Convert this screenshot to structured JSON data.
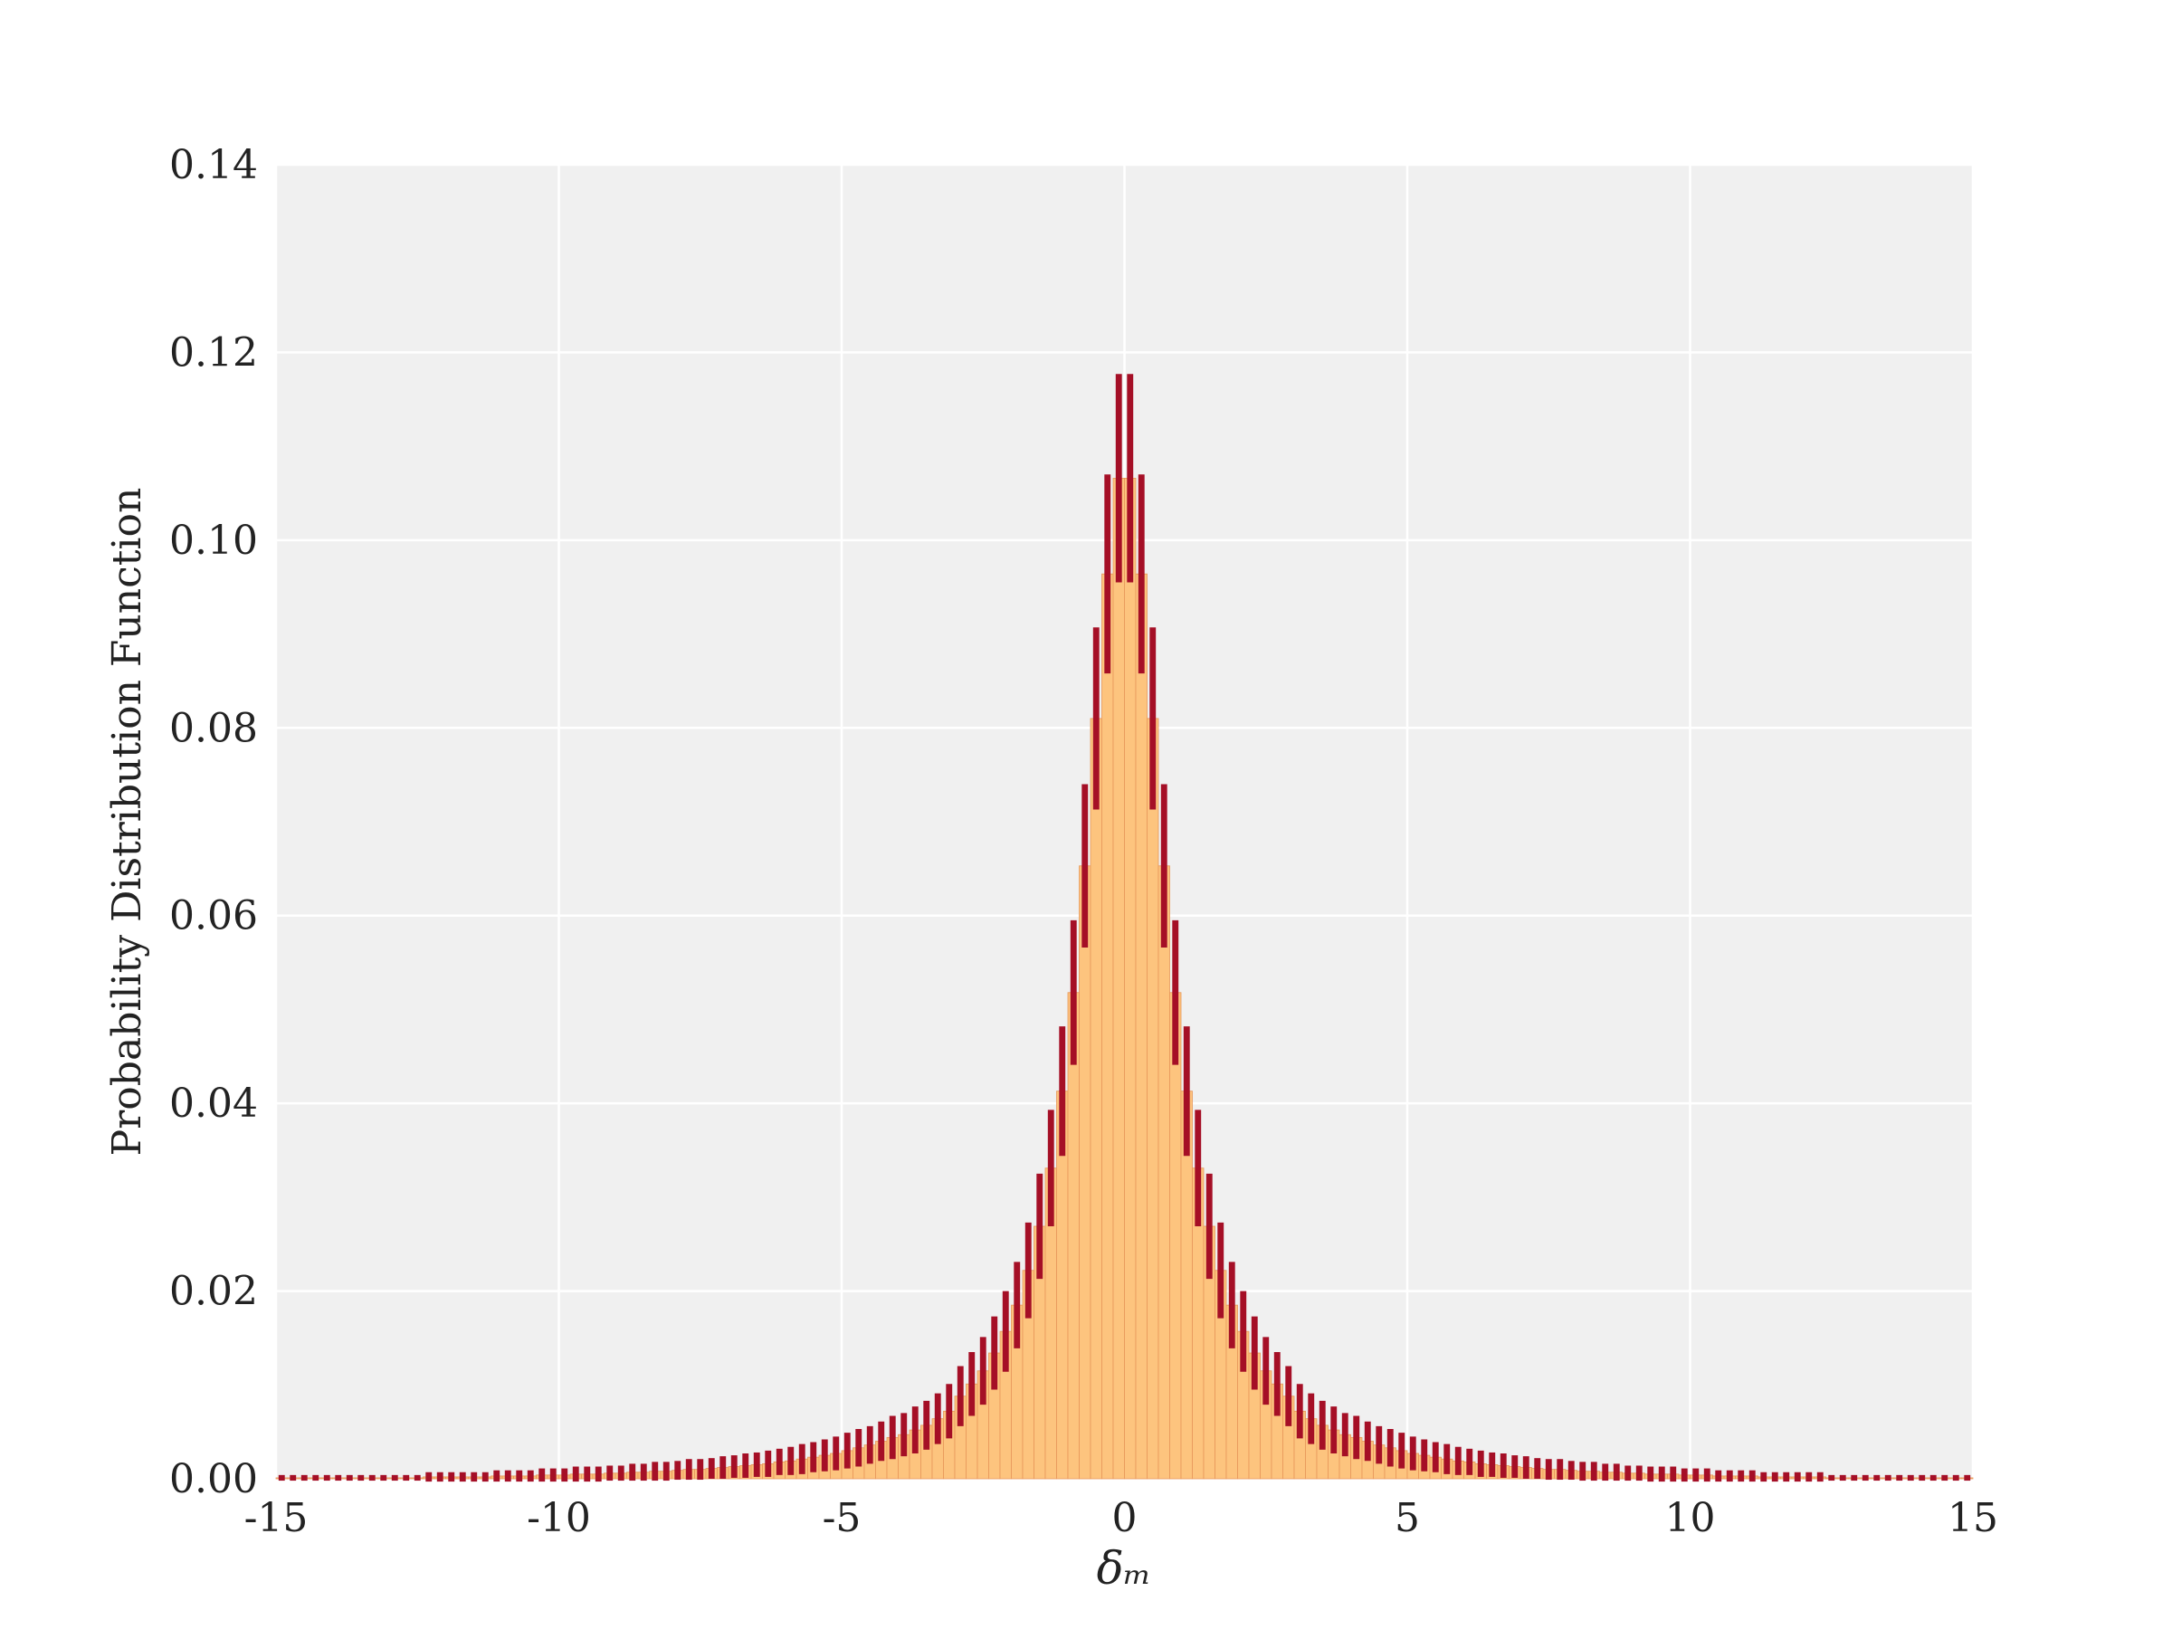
{
  "chart_data": {
    "type": "histogram",
    "xlabel": "δₘ",
    "ylabel": "Probability Distribution Function",
    "bins": [
      -15,
      -14.8,
      -14.6,
      -14.4,
      -14.2,
      -14,
      -13.8,
      -13.6,
      -13.4,
      -13.2,
      -13,
      -12.8,
      -12.6,
      -12.4,
      -12.2,
      -12,
      -11.8,
      -11.6,
      -11.4,
      -11.2,
      -11,
      -10.8,
      -10.6,
      -10.4,
      -10.2,
      -10,
      -9.8,
      -9.6,
      -9.4,
      -9.2,
      -9,
      -8.8,
      -8.6,
      -8.4,
      -8.2,
      -8,
      -7.8,
      -7.6,
      -7.4,
      -7.2,
      -7,
      -6.8,
      -6.6,
      -6.4,
      -6.2,
      -6,
      -5.8,
      -5.6,
      -5.4,
      -5.2,
      -5,
      -4.8,
      -4.6,
      -4.4,
      -4.2,
      -4,
      -3.8,
      -3.6,
      -3.4,
      -3.2,
      -3,
      -2.8,
      -2.6,
      -2.4,
      -2.2,
      -2,
      -1.8,
      -1.6,
      -1.4,
      -1.2,
      -1,
      -0.8,
      -0.6,
      -0.4,
      -0.2,
      0,
      0.2,
      0.4,
      0.6,
      0.8,
      1,
      1.2,
      1.4,
      1.6,
      1.8,
      2,
      2.2,
      2.4,
      2.6,
      2.8,
      3,
      3.2,
      3.4,
      3.6,
      3.8,
      4,
      4.2,
      4.4,
      4.6,
      4.8,
      5,
      5.2,
      5.4,
      5.6,
      5.8,
      6,
      6.2,
      6.4,
      6.6,
      6.8,
      7,
      7.2,
      7.4,
      7.6,
      7.8,
      8,
      8.2,
      8.4,
      8.6,
      8.8,
      9,
      9.2,
      9.4,
      9.6,
      9.8,
      10,
      10.2,
      10.4,
      10.6,
      10.8,
      11,
      11.2,
      11.4,
      11.6,
      11.8,
      12,
      12.2,
      12.4,
      12.6,
      12.8,
      13,
      13.2,
      13.4,
      13.6,
      13.8,
      14,
      14.2,
      14.4,
      14.6,
      14.8,
      15
    ],
    "values": [
      0.0001,
      0.0001,
      0.0001,
      0.0001,
      0.0001,
      0.0001,
      0.0001,
      0.0001,
      0.0001,
      0.0001,
      0.0001,
      0.0001,
      0.0001,
      0.0002,
      0.0002,
      0.0002,
      0.0002,
      0.0002,
      0.0002,
      0.0003,
      0.0003,
      0.0003,
      0.0003,
      0.0004,
      0.0004,
      0.0004,
      0.0005,
      0.0005,
      0.0005,
      0.0006,
      0.0006,
      0.0007,
      0.0007,
      0.0008,
      0.0008,
      0.0009,
      0.001,
      0.001,
      0.0011,
      0.0012,
      0.0013,
      0.0014,
      0.0015,
      0.0016,
      0.0018,
      0.0019,
      0.0021,
      0.0023,
      0.0025,
      0.0027,
      0.003,
      0.0033,
      0.0036,
      0.004,
      0.0044,
      0.0047,
      0.0052,
      0.0057,
      0.0064,
      0.0072,
      0.0088,
      0.0101,
      0.0115,
      0.0134,
      0.0157,
      0.0185,
      0.0222,
      0.0269,
      0.0331,
      0.0413,
      0.0518,
      0.0653,
      0.081,
      0.0964,
      0.1066,
      0.1066,
      0.0964,
      0.081,
      0.0653,
      0.0518,
      0.0413,
      0.0331,
      0.0269,
      0.0222,
      0.0185,
      0.0157,
      0.0134,
      0.0115,
      0.0101,
      0.0088,
      0.0072,
      0.0064,
      0.0057,
      0.0052,
      0.0047,
      0.0044,
      0.004,
      0.0036,
      0.0033,
      0.003,
      0.0027,
      0.0025,
      0.0023,
      0.0021,
      0.0019,
      0.0018,
      0.0016,
      0.0015,
      0.0014,
      0.0013,
      0.0012,
      0.0011,
      0.001,
      0.001,
      0.0009,
      0.0008,
      0.0008,
      0.0007,
      0.0007,
      0.0006,
      0.0006,
      0.0005,
      0.0005,
      0.0005,
      0.0004,
      0.0004,
      0.0004,
      0.0003,
      0.0003,
      0.0003,
      0.0003,
      0.0002,
      0.0002,
      0.0002,
      0.0002,
      0.0002,
      0.0002,
      0.0001,
      0.0001,
      0.0001,
      0.0001,
      0.0001,
      0.0001,
      0.0001,
      0.0001,
      0.0001,
      0.0001,
      0.0001,
      0.0001,
      0.0001
    ],
    "errors": [
      0.0003,
      0.0003,
      0.0003,
      0.0003,
      0.0003,
      0.0003,
      0.0003,
      0.0003,
      0.0003,
      0.0003,
      0.0003,
      0.0003,
      0.0003,
      0.0005,
      0.0005,
      0.0005,
      0.0005,
      0.0005,
      0.0005,
      0.0006,
      0.0006,
      0.0006,
      0.0006,
      0.0007,
      0.0007,
      0.0007,
      0.0008,
      0.0008,
      0.0008,
      0.0008,
      0.0008,
      0.0009,
      0.0009,
      0.001,
      0.001,
      0.001,
      0.0011,
      0.0011,
      0.0011,
      0.0012,
      0.0012,
      0.0013,
      0.0013,
      0.0014,
      0.0014,
      0.0015,
      0.0016,
      0.0016,
      0.0017,
      0.0018,
      0.0019,
      0.002,
      0.002,
      0.0021,
      0.0023,
      0.0023,
      0.0025,
      0.0026,
      0.0027,
      0.0029,
      0.0032,
      0.0034,
      0.0036,
      0.0039,
      0.0043,
      0.0046,
      0.0051,
      0.0056,
      0.0062,
      0.0069,
      0.0077,
      0.0087,
      0.0097,
      0.0106,
      0.0111,
      0.0111,
      0.0106,
      0.0097,
      0.0087,
      0.0077,
      0.0069,
      0.0062,
      0.0056,
      0.0051,
      0.0046,
      0.0043,
      0.0039,
      0.0036,
      0.0034,
      0.0032,
      0.0029,
      0.0027,
      0.0026,
      0.0025,
      0.0023,
      0.0023,
      0.0021,
      0.002,
      0.002,
      0.0019,
      0.0018,
      0.0017,
      0.0016,
      0.0016,
      0.0015,
      0.0014,
      0.0014,
      0.0013,
      0.0013,
      0.0012,
      0.0012,
      0.0011,
      0.0011,
      0.0011,
      0.001,
      0.001,
      0.001,
      0.0009,
      0.0009,
      0.0008,
      0.0008,
      0.0008,
      0.0008,
      0.0008,
      0.0007,
      0.0007,
      0.0007,
      0.0006,
      0.0006,
      0.0006,
      0.0006,
      0.0005,
      0.0005,
      0.0005,
      0.0005,
      0.0005,
      0.0005,
      0.0003,
      0.0003,
      0.0003,
      0.0003,
      0.0003,
      0.0003,
      0.0003,
      0.0003,
      0.0003,
      0.0003,
      0.0003,
      0.0003,
      0.0003
    ],
    "color": "#fdc47e",
    "edge_color": "#e8975a",
    "error_color": "#a50f26",
    "xlim": [
      -15,
      15
    ],
    "xticks": [
      -15,
      -10,
      -5,
      0,
      5,
      10,
      15
    ],
    "ylim": [
      0,
      0.14
    ],
    "yticks": [
      {
        "value": 0,
        "label": "0.00"
      },
      {
        "value": 0.02,
        "label": "0.02"
      },
      {
        "value": 0.04,
        "label": "0.04"
      },
      {
        "value": 0.06,
        "label": "0.06"
      },
      {
        "value": 0.08,
        "label": "0.08"
      },
      {
        "value": 0.1,
        "label": "0.10"
      },
      {
        "value": 0.12,
        "label": "0.12"
      },
      {
        "value": 0.14,
        "label": "0.14"
      }
    ],
    "grid": true
  }
}
